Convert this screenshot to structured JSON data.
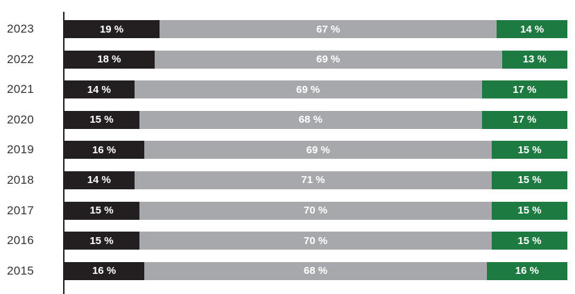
{
  "chart_data": {
    "type": "bar",
    "orientation": "horizontal",
    "stacked": true,
    "unit": "%",
    "title": "",
    "xlabel": "",
    "ylabel": "",
    "xlim": [
      0,
      100
    ],
    "grid": false,
    "legend": "none",
    "value_label_format": "{v} %",
    "categories": [
      "2023",
      "2022",
      "2021",
      "2020",
      "2019",
      "2018",
      "2017",
      "2016",
      "2015"
    ],
    "series": [
      {
        "name": "black-segment",
        "color": "#231f20",
        "values": [
          19,
          18,
          14,
          15,
          16,
          14,
          15,
          15,
          16
        ]
      },
      {
        "name": "gray-segment",
        "color": "#a6a8ab",
        "values": [
          67,
          69,
          69,
          68,
          69,
          71,
          70,
          70,
          68
        ]
      },
      {
        "name": "green-segment",
        "color": "#1d7b41",
        "values": [
          14,
          13,
          17,
          17,
          15,
          15,
          15,
          15,
          16
        ]
      }
    ]
  },
  "style": {
    "axis_line_color": "#231f20",
    "year_label_color": "#323232",
    "value_label_color": "#ffffff",
    "background": "#ffffff"
  }
}
